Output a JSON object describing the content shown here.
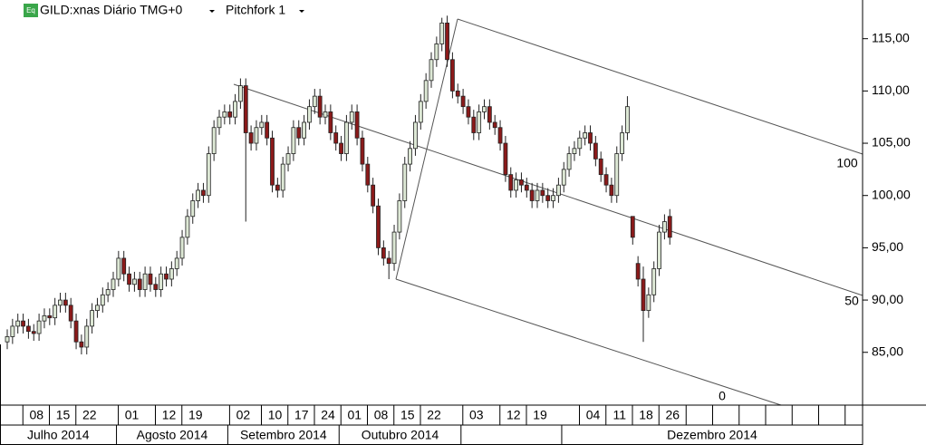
{
  "header": {
    "icon": "Eq",
    "symbol": "GILD:xnas Diário TMG+0",
    "tool": "Pitchfork 1"
  },
  "chart_data": {
    "type": "candlestick",
    "up_color": "#dde8d5",
    "down_color": "#8b1a1a",
    "categories": [
      null,
      null,
      null,
      null,
      null,
      "08",
      null,
      null,
      null,
      null,
      "15",
      null,
      null,
      null,
      null,
      "22",
      null,
      null,
      null,
      null,
      null,
      null,
      null,
      "01",
      null,
      null,
      null,
      null,
      null,
      null,
      "12",
      null,
      null,
      null,
      null,
      "19",
      null,
      null,
      null,
      null,
      null,
      null,
      null,
      null,
      "02",
      null,
      null,
      null,
      null,
      null,
      "10",
      null,
      null,
      null,
      null,
      "17",
      null,
      null,
      null,
      null,
      "24",
      null,
      null,
      null,
      null,
      "01",
      null,
      null,
      null,
      null,
      "08",
      null,
      null,
      null,
      null,
      "15",
      null,
      null,
      null,
      null,
      "22",
      null,
      null,
      null,
      null,
      null,
      null,
      null,
      "03",
      null,
      null,
      null,
      null,
      null,
      null,
      "12",
      null,
      null,
      null,
      null,
      "19",
      null,
      null,
      null,
      null,
      null,
      null,
      null,
      null,
      null,
      "04",
      null,
      null,
      null,
      null,
      "11",
      null,
      null,
      null,
      null,
      "18",
      null,
      null,
      null,
      null,
      "26"
    ],
    "months": [
      "Julho 2014",
      "Agosto 2014",
      "Setembro 2014",
      "Outubro 2014",
      null,
      "Dezembro 2014"
    ],
    "open": [
      86.0,
      86.5,
      87.5,
      88.0,
      87.5,
      87.0,
      86.8,
      88.0,
      88.5,
      88.3,
      89.5,
      90.0,
      89.5,
      88.0,
      86.0,
      85.5,
      87.5,
      89.0,
      89.5,
      90.5,
      91.0,
      92.0,
      94.0,
      92.5,
      91.5,
      92.0,
      91.0,
      92.5,
      91.5,
      91.0,
      92.5,
      92.0,
      93.0,
      94.0,
      96.0,
      98.0,
      99.5,
      100.5,
      100.0,
      104.0,
      106.5,
      107.5,
      108.0,
      107.5,
      109.0,
      110.5,
      106.0,
      105.0,
      106.5,
      107.0,
      105.5,
      101.0,
      100.5,
      103.0,
      104.0,
      106.5,
      105.5,
      107.0,
      108.5,
      109.5,
      107.5,
      108.0,
      106.0,
      105.0,
      104.0,
      107.0,
      108.0,
      105.5,
      103.0,
      101.0,
      99.0,
      95.0,
      94.0,
      93.5,
      96.5,
      99.5,
      103.0,
      104.5,
      107.0,
      109.0,
      111.0,
      113.0,
      114.5,
      116.5,
      113.0,
      110.0,
      109.5,
      108.5,
      107.5,
      106.0,
      108.0,
      108.5,
      107.0,
      106.5,
      105.0,
      102.0,
      100.5,
      101.5,
      101.0,
      100.5,
      99.5,
      100.5,
      100.0,
      99.5,
      100.0,
      101.0,
      102.5,
      104.0,
      104.5,
      105.5,
      106.0,
      105.0,
      103.5,
      102.0,
      101.0,
      100.0,
      104.0,
      106.0,
      98.0,
      93.5,
      92.0,
      89.0,
      90.5,
      93.0,
      96.5,
      98.0
    ],
    "high": [
      87.2,
      88.2,
      88.7,
      88.7,
      88.2,
      87.7,
      88.7,
      89.2,
      89.2,
      90.2,
      90.7,
      90.7,
      90.2,
      88.7,
      86.7,
      88.2,
      89.7,
      90.2,
      91.2,
      91.7,
      92.7,
      94.7,
      94.7,
      93.2,
      92.7,
      92.7,
      93.2,
      93.2,
      92.2,
      93.2,
      93.2,
      93.7,
      94.7,
      96.7,
      98.7,
      100.2,
      101.2,
      101.2,
      104.7,
      107.2,
      108.2,
      108.7,
      108.7,
      109.7,
      111.2,
      111.2,
      106.7,
      107.2,
      107.7,
      107.7,
      106.2,
      101.7,
      103.7,
      104.7,
      107.2,
      107.2,
      107.7,
      109.2,
      110.2,
      110.2,
      108.7,
      108.7,
      106.7,
      105.7,
      107.7,
      108.7,
      108.7,
      106.2,
      103.7,
      101.7,
      99.7,
      95.7,
      94.7,
      97.2,
      100.2,
      103.7,
      105.2,
      107.7,
      109.7,
      111.7,
      113.7,
      115.2,
      117.0,
      117.2,
      113.7,
      110.7,
      110.2,
      109.2,
      108.2,
      108.7,
      109.2,
      109.2,
      107.7,
      107.2,
      105.7,
      102.7,
      102.2,
      102.2,
      101.7,
      101.2,
      101.2,
      101.2,
      100.7,
      100.7,
      101.7,
      103.2,
      104.7,
      105.2,
      106.2,
      106.7,
      106.7,
      105.7,
      104.2,
      102.7,
      101.7,
      104.7,
      106.7,
      109.5,
      98.0,
      94.2,
      93.2,
      91.2,
      93.7,
      97.2,
      98.2,
      98.7
    ],
    "low": [
      85.3,
      85.8,
      86.8,
      86.8,
      86.3,
      86.1,
      86.1,
      87.3,
      87.6,
      87.6,
      88.8,
      88.8,
      87.3,
      85.3,
      84.8,
      84.8,
      86.8,
      88.3,
      88.8,
      89.8,
      90.3,
      91.3,
      91.8,
      90.8,
      90.8,
      90.3,
      90.3,
      90.8,
      90.3,
      90.3,
      91.3,
      91.3,
      92.3,
      93.3,
      95.3,
      97.3,
      98.8,
      99.3,
      99.3,
      103.3,
      105.8,
      106.8,
      106.8,
      106.8,
      108.3,
      97.5,
      104.3,
      104.3,
      105.8,
      104.8,
      100.3,
      99.8,
      99.8,
      102.3,
      103.3,
      104.8,
      104.8,
      106.3,
      107.8,
      106.8,
      106.8,
      105.3,
      104.3,
      103.3,
      103.3,
      106.3,
      104.8,
      102.3,
      100.3,
      98.3,
      94.3,
      93.3,
      92.0,
      92.8,
      95.8,
      98.8,
      102.3,
      103.8,
      106.3,
      108.3,
      110.3,
      112.3,
      113.8,
      112.3,
      109.3,
      108.8,
      107.8,
      106.8,
      105.3,
      105.3,
      107.3,
      106.3,
      105.8,
      104.3,
      101.3,
      99.8,
      99.8,
      100.3,
      99.8,
      98.8,
      98.8,
      99.3,
      98.8,
      98.8,
      99.3,
      100.3,
      101.8,
      103.3,
      103.8,
      104.8,
      104.3,
      102.8,
      101.3,
      100.3,
      99.3,
      99.3,
      103.3,
      105.3,
      95.3,
      91.3,
      86.0,
      88.3,
      89.8,
      92.3,
      95.8,
      95.3
    ],
    "close": [
      86.5,
      87.5,
      88.0,
      87.5,
      87.0,
      86.8,
      88.0,
      88.5,
      88.3,
      89.5,
      90.0,
      89.5,
      88.0,
      86.0,
      85.5,
      87.5,
      89.0,
      89.5,
      90.5,
      91.0,
      92.0,
      94.0,
      92.5,
      91.5,
      92.0,
      91.0,
      92.5,
      91.5,
      91.0,
      92.5,
      92.0,
      93.0,
      94.0,
      96.0,
      98.0,
      99.5,
      100.5,
      100.0,
      104.0,
      106.5,
      107.5,
      108.0,
      107.5,
      109.0,
      110.5,
      106.0,
      105.0,
      106.5,
      107.0,
      105.5,
      101.0,
      100.5,
      103.0,
      104.0,
      106.5,
      105.5,
      107.0,
      108.5,
      109.5,
      107.5,
      108.0,
      106.0,
      105.0,
      104.0,
      107.0,
      108.0,
      105.5,
      103.0,
      101.0,
      99.0,
      95.0,
      94.0,
      93.5,
      96.5,
      99.5,
      103.0,
      104.5,
      107.0,
      109.0,
      111.0,
      113.0,
      114.5,
      116.5,
      113.0,
      110.0,
      109.5,
      108.5,
      107.5,
      106.0,
      108.0,
      108.5,
      107.0,
      106.5,
      105.0,
      102.0,
      100.5,
      101.5,
      101.0,
      100.5,
      99.5,
      100.5,
      100.0,
      99.5,
      100.0,
      101.0,
      102.5,
      104.0,
      104.5,
      105.5,
      106.0,
      105.0,
      103.5,
      102.0,
      101.0,
      100.0,
      104.0,
      106.0,
      108.5,
      96.0,
      92.0,
      89.0,
      90.5,
      93.0,
      96.5,
      97.5,
      96.0
    ],
    "ylim": [
      79.95,
      118.7
    ],
    "yticks": [
      {
        "value": 85,
        "label": "85,00"
      },
      {
        "value": 90,
        "label": "90,00"
      },
      {
        "value": 95,
        "label": "95,00"
      },
      {
        "value": 100,
        "label": "100,00"
      },
      {
        "value": 105,
        "label": "105,00"
      },
      {
        "value": 110,
        "label": "110,00"
      },
      {
        "value": 115,
        "label": "115,00"
      }
    ],
    "pitchfork_levels": [
      100,
      50,
      0
    ]
  }
}
